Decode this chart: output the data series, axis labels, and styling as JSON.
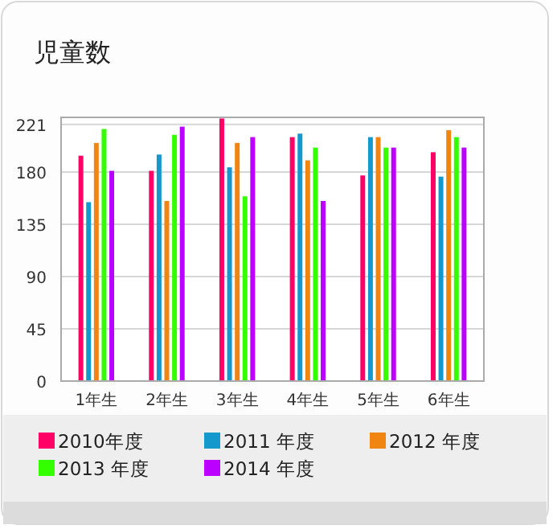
{
  "chart_data": {
    "type": "bar",
    "title": "児童数",
    "categories": [
      "1年生",
      "2年生",
      "3年生",
      "4年生",
      "5年生",
      "6年生"
    ],
    "series": [
      {
        "name": "2010年度",
        "color": "#ff0066",
        "values": [
          194,
          181,
          226,
          210,
          177,
          197
        ]
      },
      {
        "name": "2011 年度",
        "color": "#1599cc",
        "values": [
          154,
          195,
          184,
          213,
          210,
          176
        ]
      },
      {
        "name": "2012 年度",
        "color": "#f08512",
        "values": [
          205,
          155,
          205,
          190,
          210,
          216
        ]
      },
      {
        "name": "2013 年度",
        "color": "#33ff00",
        "values": [
          217,
          212,
          159,
          201,
          201,
          210
        ]
      },
      {
        "name": "2014 年度",
        "color": "#bb00ff",
        "values": [
          181,
          219,
          210,
          155,
          201,
          201
        ]
      }
    ],
    "ylim": [
      0,
      227
    ],
    "yticks": [
      0,
      45,
      90,
      135,
      180,
      221
    ],
    "grid": "y",
    "legend": "bottom"
  }
}
